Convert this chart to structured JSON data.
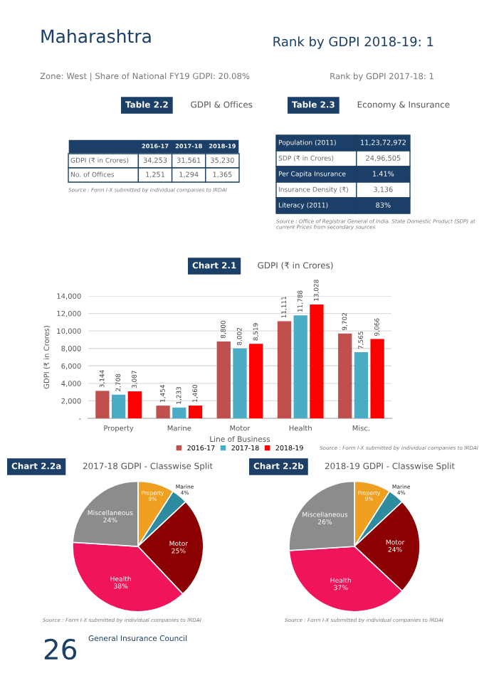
{
  "chart_data": [
    {
      "type": "other",
      "title": "Maharashtra",
      "subtitle": "Zone: West | Share of National FY19 GDPI: 20.08%",
      "annotations": [
        "Rank by GDPI 2018-19: 1",
        "Rank by GDPI 2017-18: 1",
        "26",
        "General Insurance Council"
      ]
    },
    {
      "type": "other",
      "title": "Table 2.2",
      "subtitle": "GDPI & Offices",
      "categories": [
        "2016-17",
        "2017-18",
        "2018-19"
      ],
      "y_categories": [
        "GDPI (₹ in Crores)",
        "No. of Offices"
      ],
      "cell_labels": [
        [
          "34,253",
          "31,561",
          "35,230"
        ],
        [
          "1,251",
          "1,294",
          "1,365"
        ]
      ],
      "annotations": [
        "Source : Form I-X submitted by individual companies to IRDAI"
      ]
    },
    {
      "type": "other",
      "title": "Table 2.3",
      "subtitle": "Economy & Insurance",
      "y_categories": [
        "Population (2011)",
        "SDP (₹ in Crores)",
        "Per Capita Insurance",
        "Insurance Density (₹)",
        "Literacy (2011)"
      ],
      "cell_labels": [
        [
          "11,23,72,972"
        ],
        [
          "24,96,505"
        ],
        [
          "1.41%"
        ],
        [
          "3,136"
        ],
        [
          "83%"
        ]
      ],
      "annotations": [
        "Source : Office of Registrar General of India. State Domestic Product (SDP) at current Prices from secondary sources"
      ]
    },
    {
      "type": "bar",
      "title": "Chart 2.1",
      "subtitle": "GDPI (₹ in Crores)",
      "categories": [
        "Property",
        "Marine",
        "Motor",
        "Health",
        "Misc."
      ],
      "xlabel": "Line of Business",
      "ylabel": "GDPI (₹ in Crores)",
      "ylim": [
        0,
        14000
      ],
      "yticks": [
        {
          "value": 0,
          "label": "-"
        },
        {
          "value": 2000,
          "label": "2,000"
        },
        {
          "value": 4000,
          "label": "4,000"
        },
        {
          "value": 6000,
          "label": "6,000"
        },
        {
          "value": 8000,
          "label": "8,000"
        },
        {
          "value": 10000,
          "label": "10,000"
        },
        {
          "value": 12000,
          "label": "12,000"
        },
        {
          "value": 14000,
          "label": "14,000"
        }
      ],
      "grid": "y",
      "legend": "bottom",
      "series": [
        {
          "name": "2016-17",
          "color": "#c0504d",
          "values": [
            3144,
            1454,
            8800,
            11111,
            9702
          ],
          "value_labels": [
            "3,144",
            "1,454",
            "8,800",
            "11,111",
            "9,702"
          ]
        },
        {
          "name": "2017-18",
          "color": "#4bacc6",
          "values": [
            2708,
            1233,
            8002,
            11788,
            7565
          ],
          "value_labels": [
            "2,708",
            "1,233",
            "8,002",
            "11,788",
            "7,565"
          ]
        },
        {
          "name": "2018-19",
          "color": "#ff0000",
          "values": [
            3087,
            1460,
            8519,
            13028,
            9066
          ],
          "value_labels": [
            "3,087",
            "1,460",
            "8,519",
            "13,028",
            "9,066"
          ]
        }
      ],
      "annotations": [
        "Source : Form I-X submitted by individual companies to IRDAI"
      ]
    },
    {
      "type": "pie",
      "title": "Chart 2.2a",
      "subtitle": "2017-18 GDPI - Classwise Split",
      "categories": [
        "Property",
        "Marine",
        "Motor",
        "Health",
        "Miscellaneous"
      ],
      "values": [
        9,
        4,
        25,
        38,
        24
      ],
      "value_labels": [
        "9%",
        "4%",
        "25%",
        "38%",
        "24%"
      ],
      "colors": [
        "#f0a020",
        "#2e8ba0",
        "#8b0000",
        "#f0145a",
        "#8c8c8c"
      ],
      "annotations": [
        "Source : Form I-X submitted by individual companies to IRDAI"
      ]
    },
    {
      "type": "pie",
      "title": "Chart 2.2b",
      "subtitle": "2018-19 GDPI - Classwise Split",
      "categories": [
        "Property",
        "Marine",
        "Motor",
        "Health",
        "Miscellaneous"
      ],
      "values": [
        9,
        4,
        24,
        37,
        26
      ],
      "value_labels": [
        "9%",
        "4%",
        "24%",
        "37%",
        "26%"
      ],
      "colors": [
        "#f0a020",
        "#2e8ba0",
        "#8b0000",
        "#f0145a",
        "#8c8c8c"
      ],
      "annotations": [
        "Source : Form I-X submitted by individual companies to IRDAI"
      ]
    }
  ]
}
